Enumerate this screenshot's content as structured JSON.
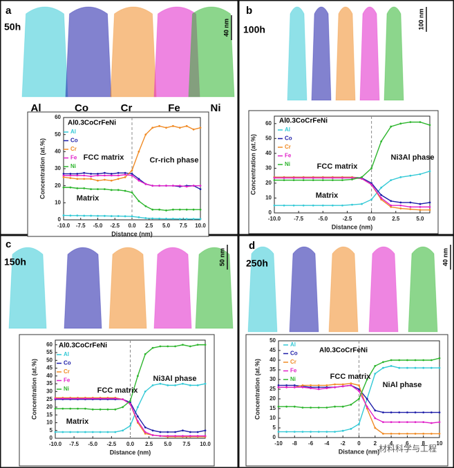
{
  "panels": [
    {
      "label": "a",
      "time": "50h",
      "scale_bar": "40 nm"
    },
    {
      "label": "b",
      "time": "100h",
      "scale_bar": "100 nm"
    },
    {
      "label": "c",
      "time": "150h",
      "scale_bar": "50 nm"
    },
    {
      "label": "d",
      "time": "250h",
      "scale_bar": "40 nm"
    }
  ],
  "element_labels": [
    "Al",
    "Co",
    "Cr",
    "Fe",
    "Ni"
  ],
  "watermark": "材料科学与工程",
  "chart_data": [
    {
      "type": "line",
      "title": "Al0.3CoCrFeNi",
      "x_label": "Distance (nm)",
      "y_label": "Concentration (at.%)",
      "legend": "upper left",
      "vline": 0,
      "x": [
        -10,
        -9,
        -8,
        -7,
        -6,
        -5,
        -4,
        -3,
        -2,
        -1,
        0,
        1,
        2,
        3,
        4,
        5,
        6,
        7,
        8,
        9,
        10
      ],
      "xlim": [
        -10,
        10
      ],
      "ylim": [
        0,
        60
      ],
      "xticks": [
        {
          "value": -10,
          "label": "-10.0"
        },
        {
          "value": -7.5,
          "label": "-7.5"
        },
        {
          "value": -5,
          "label": "-5.0"
        },
        {
          "value": -2.5,
          "label": "-2.5"
        },
        {
          "value": 0,
          "label": "0.0"
        },
        {
          "value": 2.5,
          "label": "2.5"
        },
        {
          "value": 5,
          "label": "5.0"
        },
        {
          "value": 7.5,
          "label": "7.5"
        },
        {
          "value": 10,
          "label": "10.0"
        }
      ],
      "yticks": [
        0,
        10,
        20,
        30,
        40,
        50,
        60
      ],
      "annotations": [
        "FCC matrix",
        "Cr-rich phase",
        "Matrix"
      ],
      "series": [
        {
          "name": "Al",
          "color": "#33c9d6",
          "values": [
            2.6,
            2.5,
            2.5,
            2.4,
            2.4,
            2.3,
            2.3,
            2.2,
            2.2,
            2.1,
            2.0,
            1.5,
            1,
            0.8,
            0.7,
            0.6,
            0.6,
            0.5,
            0.5,
            0.5,
            0.5
          ]
        },
        {
          "name": "Co",
          "color": "#1c1ca8",
          "values": [
            27,
            27,
            27,
            27.5,
            27,
            27,
            27.5,
            27,
            27.5,
            27.5,
            27,
            24,
            21,
            20,
            20,
            20,
            20,
            19.5,
            20,
            20,
            18
          ]
        },
        {
          "name": "Cr",
          "color": "#f08a24",
          "values": [
            25,
            24.5,
            24,
            24,
            24,
            23,
            23.5,
            23,
            24,
            25,
            29,
            40,
            50,
            54,
            55,
            54,
            55,
            54,
            55,
            53,
            54
          ]
        },
        {
          "name": "Fe",
          "color": "#e020c8",
          "values": [
            26,
            26,
            26,
            26,
            25.5,
            26,
            26,
            26,
            26,
            26.5,
            26,
            23,
            21,
            20,
            20,
            20,
            20,
            20,
            19.5,
            20,
            20
          ]
        },
        {
          "name": "Ni",
          "color": "#2db52d",
          "values": [
            19,
            19,
            18.5,
            18.5,
            18,
            18,
            18,
            17.5,
            17.5,
            17,
            16,
            11,
            8,
            6,
            6,
            5.5,
            6,
            6,
            6,
            6,
            6
          ]
        }
      ]
    },
    {
      "type": "line",
      "title": "Al0.3CoCrFeNi",
      "x_label": "Distance (nm)",
      "y_label": "Concentration (at.%)",
      "legend": "upper left",
      "vline": 0,
      "x": [
        -10,
        -9,
        -8,
        -7,
        -6,
        -5,
        -4,
        -3,
        -2,
        -1,
        0,
        1,
        2,
        3,
        4,
        5,
        6
      ],
      "xlim": [
        -10,
        6
      ],
      "ylim": [
        0,
        65
      ],
      "xticks": [
        {
          "value": -10,
          "label": "-10.0"
        },
        {
          "value": -7.5,
          "label": "-7.5"
        },
        {
          "value": -5,
          "label": "-5.0"
        },
        {
          "value": -2.5,
          "label": "-2.5"
        },
        {
          "value": 0,
          "label": "0.0"
        },
        {
          "value": 2.5,
          "label": "2.5"
        },
        {
          "value": 5,
          "label": "5.0"
        }
      ],
      "yticks": [
        0,
        10,
        20,
        30,
        40,
        50,
        60
      ],
      "annotations": [
        "FCC matrix",
        "Ni3Al phase",
        "Matrix"
      ],
      "series": [
        {
          "name": "Al",
          "color": "#33c9d6",
          "values": [
            5,
            5,
            5,
            5,
            5,
            5,
            5,
            5,
            5.5,
            6,
            9,
            17,
            22,
            24,
            25,
            26,
            28
          ]
        },
        {
          "name": "Co",
          "color": "#1c1ca8",
          "values": [
            24,
            24,
            24,
            24,
            24,
            24,
            24,
            24,
            24,
            23.5,
            20,
            12,
            8,
            7,
            7,
            6,
            7
          ]
        },
        {
          "name": "Cr",
          "color": "#f08a24",
          "values": [
            24,
            24,
            24,
            24,
            24,
            24,
            24,
            24,
            24,
            23,
            19,
            9,
            4,
            3,
            2.5,
            2,
            2
          ]
        },
        {
          "name": "Fe",
          "color": "#e020c8",
          "values": [
            23.5,
            23.5,
            23.5,
            23.5,
            23.5,
            23.5,
            23.5,
            23.5,
            23.5,
            23,
            19,
            10,
            5,
            5,
            4,
            4,
            4
          ]
        },
        {
          "name": "Ni",
          "color": "#2db52d",
          "values": [
            22,
            22,
            22,
            22,
            22,
            22,
            22,
            22,
            22.5,
            24,
            30,
            48,
            58,
            60,
            61,
            61,
            59
          ]
        }
      ]
    },
    {
      "type": "line",
      "title": "Al0.3CoCrFeNi",
      "x_label": "Distance (nm)",
      "y_label": "Concentration (at.%)",
      "legend": "upper left",
      "vline": 0,
      "x": [
        -10,
        -9,
        -8,
        -7,
        -6,
        -5,
        -4,
        -3,
        -2,
        -1,
        0,
        1,
        2,
        3,
        4,
        5,
        6,
        7,
        8,
        9,
        10
      ],
      "xlim": [
        -10,
        10
      ],
      "ylim": [
        0,
        63
      ],
      "xticks": [
        {
          "value": -10,
          "label": "-10.0"
        },
        {
          "value": -7.5,
          "label": "-7.5"
        },
        {
          "value": -5,
          "label": "-5.0"
        },
        {
          "value": -2.5,
          "label": "-2.5"
        },
        {
          "value": 0,
          "label": "0.0"
        },
        {
          "value": 2.5,
          "label": "2.5"
        },
        {
          "value": 5,
          "label": "5.0"
        },
        {
          "value": 7.5,
          "label": "7.5"
        },
        {
          "value": 10,
          "label": "10.0"
        }
      ],
      "yticks": [
        0,
        5,
        10,
        15,
        20,
        25,
        30,
        35,
        40,
        45,
        50,
        55,
        60
      ],
      "annotations": [
        "FCC matrix",
        "Ni3Al  phase",
        "Matrix"
      ],
      "series": [
        {
          "name": "Al",
          "color": "#33c9d6",
          "values": [
            4,
            4,
            4,
            4,
            4,
            4,
            4,
            4,
            4,
            5,
            8,
            20,
            30,
            34,
            35,
            34,
            34,
            35,
            34,
            34,
            35
          ]
        },
        {
          "name": "Co",
          "color": "#1c1ca8",
          "values": [
            25,
            25,
            25,
            25,
            25,
            25,
            25,
            25,
            25,
            25,
            23,
            14,
            7,
            5,
            4,
            4,
            4,
            5,
            4,
            4,
            5
          ]
        },
        {
          "name": "Cr",
          "color": "#f08a24",
          "values": [
            26,
            26,
            26,
            26,
            26,
            26,
            26,
            26,
            26,
            25,
            22,
            10,
            3,
            2,
            1.5,
            1,
            1,
            1,
            1,
            1,
            1
          ]
        },
        {
          "name": "Fe",
          "color": "#e020c8",
          "values": [
            25.5,
            25.5,
            25.5,
            25.5,
            25.5,
            25.5,
            25.5,
            25.5,
            25.5,
            25,
            22,
            11,
            4,
            2,
            1.5,
            1.5,
            1.5,
            1.5,
            1.5,
            1.5,
            1.5
          ]
        },
        {
          "name": "Ni",
          "color": "#2db52d",
          "values": [
            19,
            19,
            19,
            19,
            19,
            18.5,
            18.5,
            18.5,
            18.5,
            20,
            24,
            40,
            54,
            58,
            59,
            59,
            59,
            60,
            59,
            60,
            60
          ]
        }
      ]
    },
    {
      "type": "line",
      "title": "Al0.3CoCrFeNi",
      "x_label": "Distance (nm)",
      "y_label": "Concentration (at.%)",
      "legend": "upper left",
      "vline": 0,
      "x": [
        -10,
        -9,
        -8,
        -7,
        -6,
        -5,
        -4,
        -3,
        -2,
        -1,
        0,
        1,
        2,
        3,
        4,
        5,
        6,
        7,
        8,
        9,
        10
      ],
      "xlim": [
        -10,
        10
      ],
      "ylim": [
        0,
        50
      ],
      "xticks": [
        -10,
        -8,
        -6,
        -4,
        -2,
        0,
        2,
        4,
        6,
        8,
        10
      ],
      "yticks": [
        0,
        5,
        10,
        15,
        20,
        25,
        30,
        35,
        40,
        45,
        50
      ],
      "annotations": [
        "FCC matrix",
        "NiAl phase"
      ],
      "series": [
        {
          "name": "Al",
          "color": "#33c9d6",
          "values": [
            3,
            3,
            3,
            3,
            3,
            3,
            3,
            3,
            3.5,
            4.5,
            7,
            20,
            33,
            36,
            37,
            36,
            36,
            36,
            36,
            36,
            36
          ]
        },
        {
          "name": "Co",
          "color": "#1c1ca8",
          "values": [
            27,
            27,
            27,
            26.5,
            26,
            26,
            26,
            26,
            26.5,
            27,
            25,
            20,
            14,
            13,
            13,
            13,
            13,
            13,
            13,
            13,
            13
          ]
        },
        {
          "name": "Cr",
          "color": "#f08a24",
          "values": [
            26,
            26,
            26,
            27,
            27,
            27,
            27,
            27.5,
            27.5,
            28,
            27,
            15,
            5,
            2,
            2,
            2,
            2,
            2,
            2,
            2,
            2
          ]
        },
        {
          "name": "Fe",
          "color": "#e020c8",
          "values": [
            26,
            26,
            26,
            26,
            25.5,
            25,
            25.5,
            26,
            26.5,
            27,
            24,
            16,
            10,
            8,
            8,
            8,
            8,
            8,
            8,
            7.5,
            8
          ]
        },
        {
          "name": "Ni",
          "color": "#2db52d",
          "values": [
            16,
            16,
            16,
            15.5,
            15.5,
            15.5,
            15.5,
            16,
            16,
            17,
            20,
            30,
            37,
            39,
            40,
            40,
            40,
            40,
            40,
            40,
            41
          ]
        }
      ]
    }
  ]
}
